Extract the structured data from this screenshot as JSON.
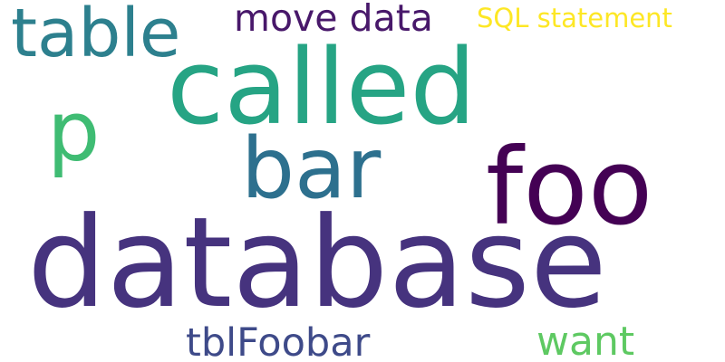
{
  "words": [
    {
      "text": "database",
      "color": "#46337e"
    },
    {
      "text": "called",
      "color": "#26a484"
    },
    {
      "text": "foo",
      "color": "#440154"
    },
    {
      "text": "bar",
      "color": "#2d708e"
    },
    {
      "text": "table",
      "color": "#2d808e"
    },
    {
      "text": "p",
      "color": "#3fbc73"
    },
    {
      "text": "tblFoobar",
      "color": "#3e4a89"
    },
    {
      "text": "move data",
      "color": "#48186a"
    },
    {
      "text": "want",
      "color": "#5ec962"
    },
    {
      "text": "SQL statement",
      "color": "#fde725"
    }
  ]
}
